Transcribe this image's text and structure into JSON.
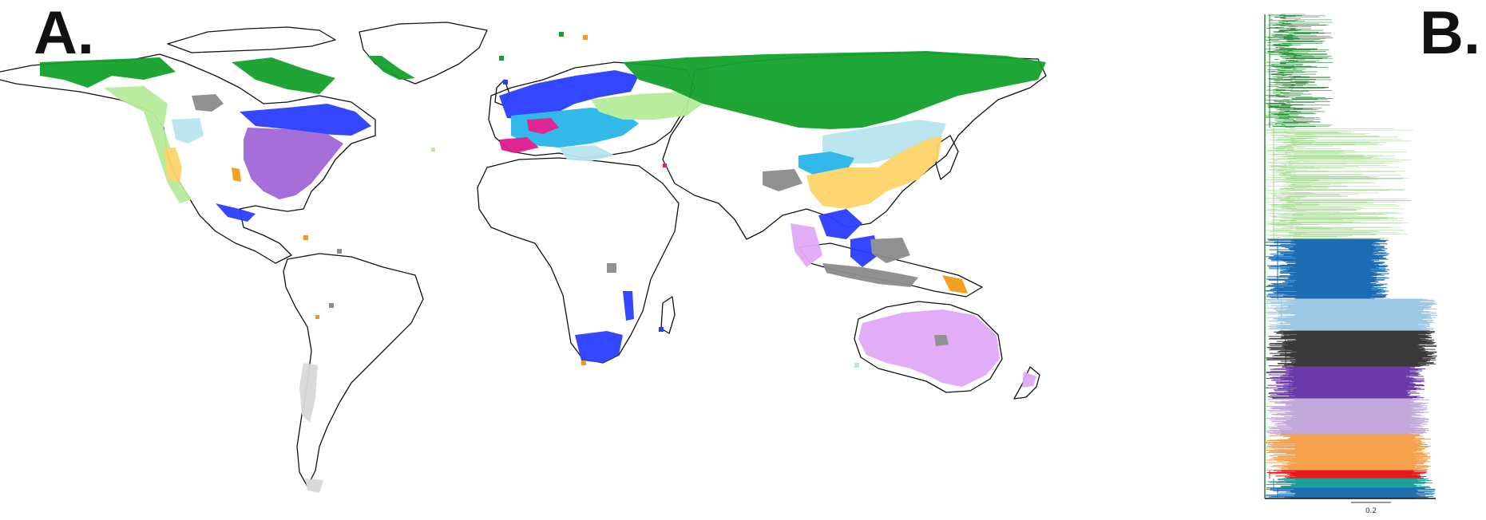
{
  "panels": {
    "a_label": "A.",
    "b_label": "B."
  },
  "colors": {
    "dark_green": "#12a12c",
    "light_green": "#b6ec9a",
    "blue": "#2a3dff",
    "cyan": "#29b6e8",
    "pale_blue": "#b8e4ef",
    "magenta": "#e01a8d",
    "gray": "#8c8c8c",
    "purple": "#a267d6",
    "yellow": "#fcd56a",
    "orange": "#f29a17",
    "lavender": "#e2a8f7",
    "light_gray": "#d8d8d8",
    "land_outline": "#111111",
    "tree_dark_green": "#1b8a2a",
    "tree_light_green": "#9fd98a",
    "tree_blue": "#1d6db5",
    "tree_light_blue": "#9cc8e6",
    "tree_dark_gray": "#3a3a3a",
    "tree_purple": "#6a3aa8",
    "tree_lavender": "#c3a8dc",
    "tree_orange": "#f5a04a",
    "tree_red": "#e41a1c",
    "tree_teal": "#1aa098"
  },
  "tree": {
    "scale_label": "0.2"
  }
}
